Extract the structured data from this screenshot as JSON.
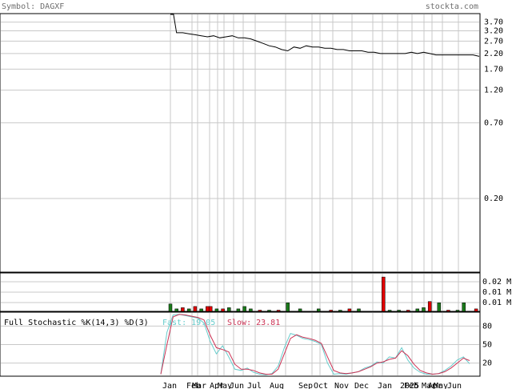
{
  "header": {
    "symbol_label": "Symbol: DAGXF",
    "site": "stockta.com"
  },
  "stochastic_panel": {
    "title": "Full Stochastic %K(14,3) %D(3)",
    "fast_label": "Fast: 19.05",
    "slow_label": "Slow: 23.81"
  },
  "colors": {
    "price": "#000000",
    "grid": "#c8c8c8",
    "frame": "#000000",
    "volume_up": "#1a7a1a",
    "volume_down": "#e00000",
    "fast_line": "#66cccc",
    "slow_line": "#cc3355",
    "header_text": "#6e6e6e"
  },
  "chart_data": [
    {
      "type": "line",
      "title": "",
      "scale": "log",
      "y_ticks": [
        "3.70",
        "3.20",
        "2.70",
        "2.20",
        "1.70",
        "1.20",
        "0.70",
        "0.20"
      ],
      "x_tick_labels": [
        "Jan",
        "Feb",
        "Mar",
        "Apr",
        "May",
        "Jun",
        "Jul",
        "Aug",
        "Sep",
        "Oct",
        "Nov",
        "Dec",
        "Jan",
        "2025",
        "Feb",
        "Mar",
        "Apr",
        "May",
        "Jun"
      ],
      "x_index_range": [
        0,
        100
      ],
      "series": [
        {
          "x": [
            0,
            1,
            2,
            4,
            6,
            8,
            10,
            12,
            14,
            16,
            18,
            20,
            22,
            24,
            26,
            28,
            30,
            32,
            34,
            36,
            38,
            40,
            42,
            44,
            46,
            48,
            50,
            52,
            54,
            56,
            58,
            60,
            62,
            64,
            66,
            68,
            70,
            72,
            74,
            76,
            78,
            80,
            82,
            84,
            86,
            88,
            90,
            92,
            94,
            96,
            98,
            100
          ],
          "y": [
            80,
            80,
            3.1,
            3.1,
            3.05,
            3.0,
            2.95,
            2.9,
            2.95,
            2.85,
            2.9,
            2.95,
            2.85,
            2.85,
            2.8,
            2.7,
            2.6,
            2.5,
            2.45,
            2.35,
            2.3,
            2.45,
            2.4,
            2.5,
            2.45,
            2.45,
            2.4,
            2.4,
            2.35,
            2.35,
            2.3,
            2.3,
            2.3,
            2.25,
            2.25,
            2.2,
            2.2,
            2.2,
            2.2,
            2.2,
            2.25,
            2.2,
            2.25,
            2.2,
            2.15,
            2.15,
            2.15,
            2.15,
            2.15,
            2.15,
            2.15,
            2.1
          ]
        }
      ]
    },
    {
      "type": "bar",
      "title": "",
      "y_ticks": [
        "0.02 M",
        "0.01 M",
        "0.01 M"
      ],
      "bars": [
        {
          "x": 0,
          "v": 0.006,
          "up": true
        },
        {
          "x": 2,
          "v": 0.002,
          "up": true
        },
        {
          "x": 4,
          "v": 0.003,
          "up": false
        },
        {
          "x": 6,
          "v": 0.002,
          "up": true
        },
        {
          "x": 8,
          "v": 0.004,
          "up": false
        },
        {
          "x": 10,
          "v": 0.002,
          "up": true
        },
        {
          "x": 12,
          "v": 0.004,
          "up": false
        },
        {
          "x": 13,
          "v": 0.004,
          "up": false
        },
        {
          "x": 15,
          "v": 0.002,
          "up": true
        },
        {
          "x": 17,
          "v": 0.002,
          "up": false
        },
        {
          "x": 19,
          "v": 0.003,
          "up": true
        },
        {
          "x": 22,
          "v": 0.002,
          "up": true
        },
        {
          "x": 24,
          "v": 0.004,
          "up": true
        },
        {
          "x": 26,
          "v": 0.002,
          "up": true
        },
        {
          "x": 29,
          "v": 0.001,
          "up": false
        },
        {
          "x": 32,
          "v": 0.001,
          "up": true
        },
        {
          "x": 35,
          "v": 0.001,
          "up": false
        },
        {
          "x": 38,
          "v": 0.007,
          "up": true
        },
        {
          "x": 42,
          "v": 0.002,
          "up": true
        },
        {
          "x": 48,
          "v": 0.002,
          "up": true
        },
        {
          "x": 52,
          "v": 0.001,
          "up": false
        },
        {
          "x": 55,
          "v": 0.001,
          "up": true
        },
        {
          "x": 58,
          "v": 0.002,
          "up": false
        },
        {
          "x": 61,
          "v": 0.002,
          "up": true
        },
        {
          "x": 69,
          "v": 0.028,
          "up": false
        },
        {
          "x": 71,
          "v": 0.001,
          "up": true
        },
        {
          "x": 74,
          "v": 0.001,
          "up": true
        },
        {
          "x": 77,
          "v": 0.001,
          "up": false
        },
        {
          "x": 80,
          "v": 0.002,
          "up": true
        },
        {
          "x": 82,
          "v": 0.003,
          "up": true
        },
        {
          "x": 84,
          "v": 0.008,
          "up": false
        },
        {
          "x": 87,
          "v": 0.007,
          "up": true
        },
        {
          "x": 90,
          "v": 0.001,
          "up": false
        },
        {
          "x": 93,
          "v": 0.001,
          "up": true
        },
        {
          "x": 95,
          "v": 0.007,
          "up": true
        },
        {
          "x": 99,
          "v": 0.002,
          "up": false
        }
      ]
    },
    {
      "type": "line",
      "title": "Full Stochastic %K(14,3) %D(3)",
      "y_ticks": [
        "80",
        "50",
        "20"
      ],
      "ylim": [
        0,
        100
      ],
      "series": [
        {
          "name": "Fast",
          "x": [
            0,
            2,
            4,
            6,
            8,
            10,
            12,
            14,
            16,
            18,
            20,
            22,
            24,
            26,
            28,
            30,
            32,
            34,
            36,
            38,
            40,
            42,
            44,
            46,
            48,
            50,
            52,
            54,
            56,
            58,
            60,
            62,
            64,
            66,
            68,
            70,
            72,
            74,
            76,
            78,
            80,
            82,
            84,
            86,
            88,
            90,
            92,
            94,
            96,
            98,
            100
          ],
          "y": [
            2,
            70,
            98,
            99,
            97,
            95,
            93,
            85,
            55,
            35,
            48,
            30,
            10,
            8,
            12,
            5,
            2,
            1,
            3,
            15,
            45,
            68,
            65,
            60,
            58,
            55,
            50,
            20,
            2,
            3,
            2,
            4,
            6,
            12,
            15,
            22,
            20,
            30,
            28,
            45,
            25,
            12,
            5,
            2,
            2,
            3,
            8,
            15,
            25,
            30,
            19
          ]
        },
        {
          "name": "Slow",
          "x": [
            0,
            2,
            4,
            6,
            8,
            10,
            12,
            14,
            16,
            18,
            20,
            22,
            24,
            26,
            28,
            30,
            32,
            34,
            36,
            38,
            40,
            42,
            44,
            46,
            48,
            50,
            52,
            54,
            56,
            58,
            60,
            62,
            64,
            66,
            68,
            70,
            72,
            74,
            76,
            78,
            80,
            82,
            84,
            86,
            88,
            90,
            92,
            94,
            96,
            98,
            100
          ],
          "y": [
            2,
            50,
            95,
            99,
            98,
            96,
            94,
            90,
            65,
            45,
            42,
            38,
            18,
            10,
            10,
            8,
            4,
            2,
            2,
            10,
            35,
            60,
            66,
            62,
            60,
            57,
            52,
            30,
            8,
            4,
            3,
            4,
            6,
            10,
            14,
            20,
            22,
            26,
            28,
            40,
            32,
            18,
            8,
            4,
            2,
            3,
            6,
            12,
            20,
            28,
            24
          ]
        }
      ]
    }
  ]
}
